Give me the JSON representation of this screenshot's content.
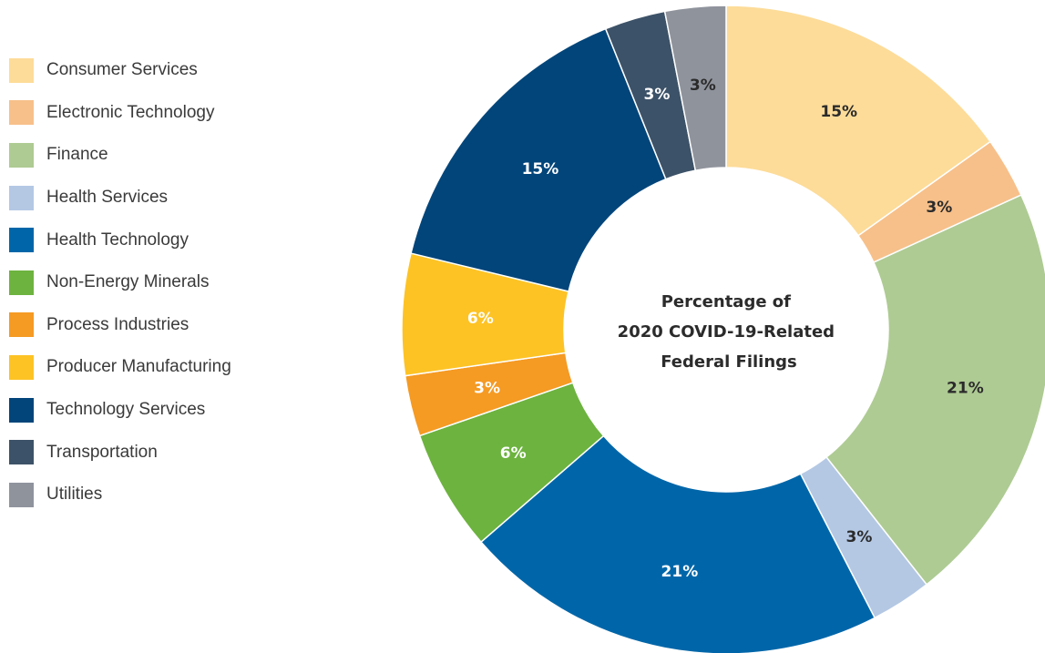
{
  "chart_data": {
    "type": "pie",
    "donut": true,
    "center_title": [
      "Percentage of",
      "2020 COVID-19-Related",
      "Federal Filings"
    ],
    "legend_position": "left",
    "slices": [
      {
        "name": "Consumer Services",
        "value": 15,
        "label": "15%",
        "color": "#fddc99",
        "label_color": "#2b2b2b"
      },
      {
        "name": "Electronic Technology",
        "value": 3,
        "label": "3%",
        "color": "#f7c08a",
        "label_color": "#2b2b2b"
      },
      {
        "name": "Finance",
        "value": 21,
        "label": "21%",
        "color": "#aecb93",
        "label_color": "#2b2b2b"
      },
      {
        "name": "Health Services",
        "value": 3,
        "label": "3%",
        "color": "#b4c8e4",
        "label_color": "#2b2b2b"
      },
      {
        "name": "Health Technology",
        "value": 21,
        "label": "21%",
        "color": "#0066a9",
        "label_color": "#ffffff"
      },
      {
        "name": "Non-Energy Minerals",
        "value": 6,
        "label": "6%",
        "color": "#6db33f",
        "label_color": "#ffffff"
      },
      {
        "name": "Process Industries",
        "value": 3,
        "label": "3%",
        "color": "#f59a23",
        "label_color": "#ffffff"
      },
      {
        "name": "Producer Manufacturing",
        "value": 6,
        "label": "6%",
        "color": "#fdc325",
        "label_color": "#ffffff"
      },
      {
        "name": "Technology Services",
        "value": 15,
        "label": "15%",
        "color": "#02457a",
        "label_color": "#ffffff"
      },
      {
        "name": "Transportation",
        "value": 3,
        "label": "3%",
        "color": "#3c5268",
        "label_color": "#ffffff"
      },
      {
        "name": "Utilities",
        "value": 3,
        "label": "3%",
        "color": "#8f939c",
        "label_color": "#2b2b2b"
      }
    ]
  }
}
